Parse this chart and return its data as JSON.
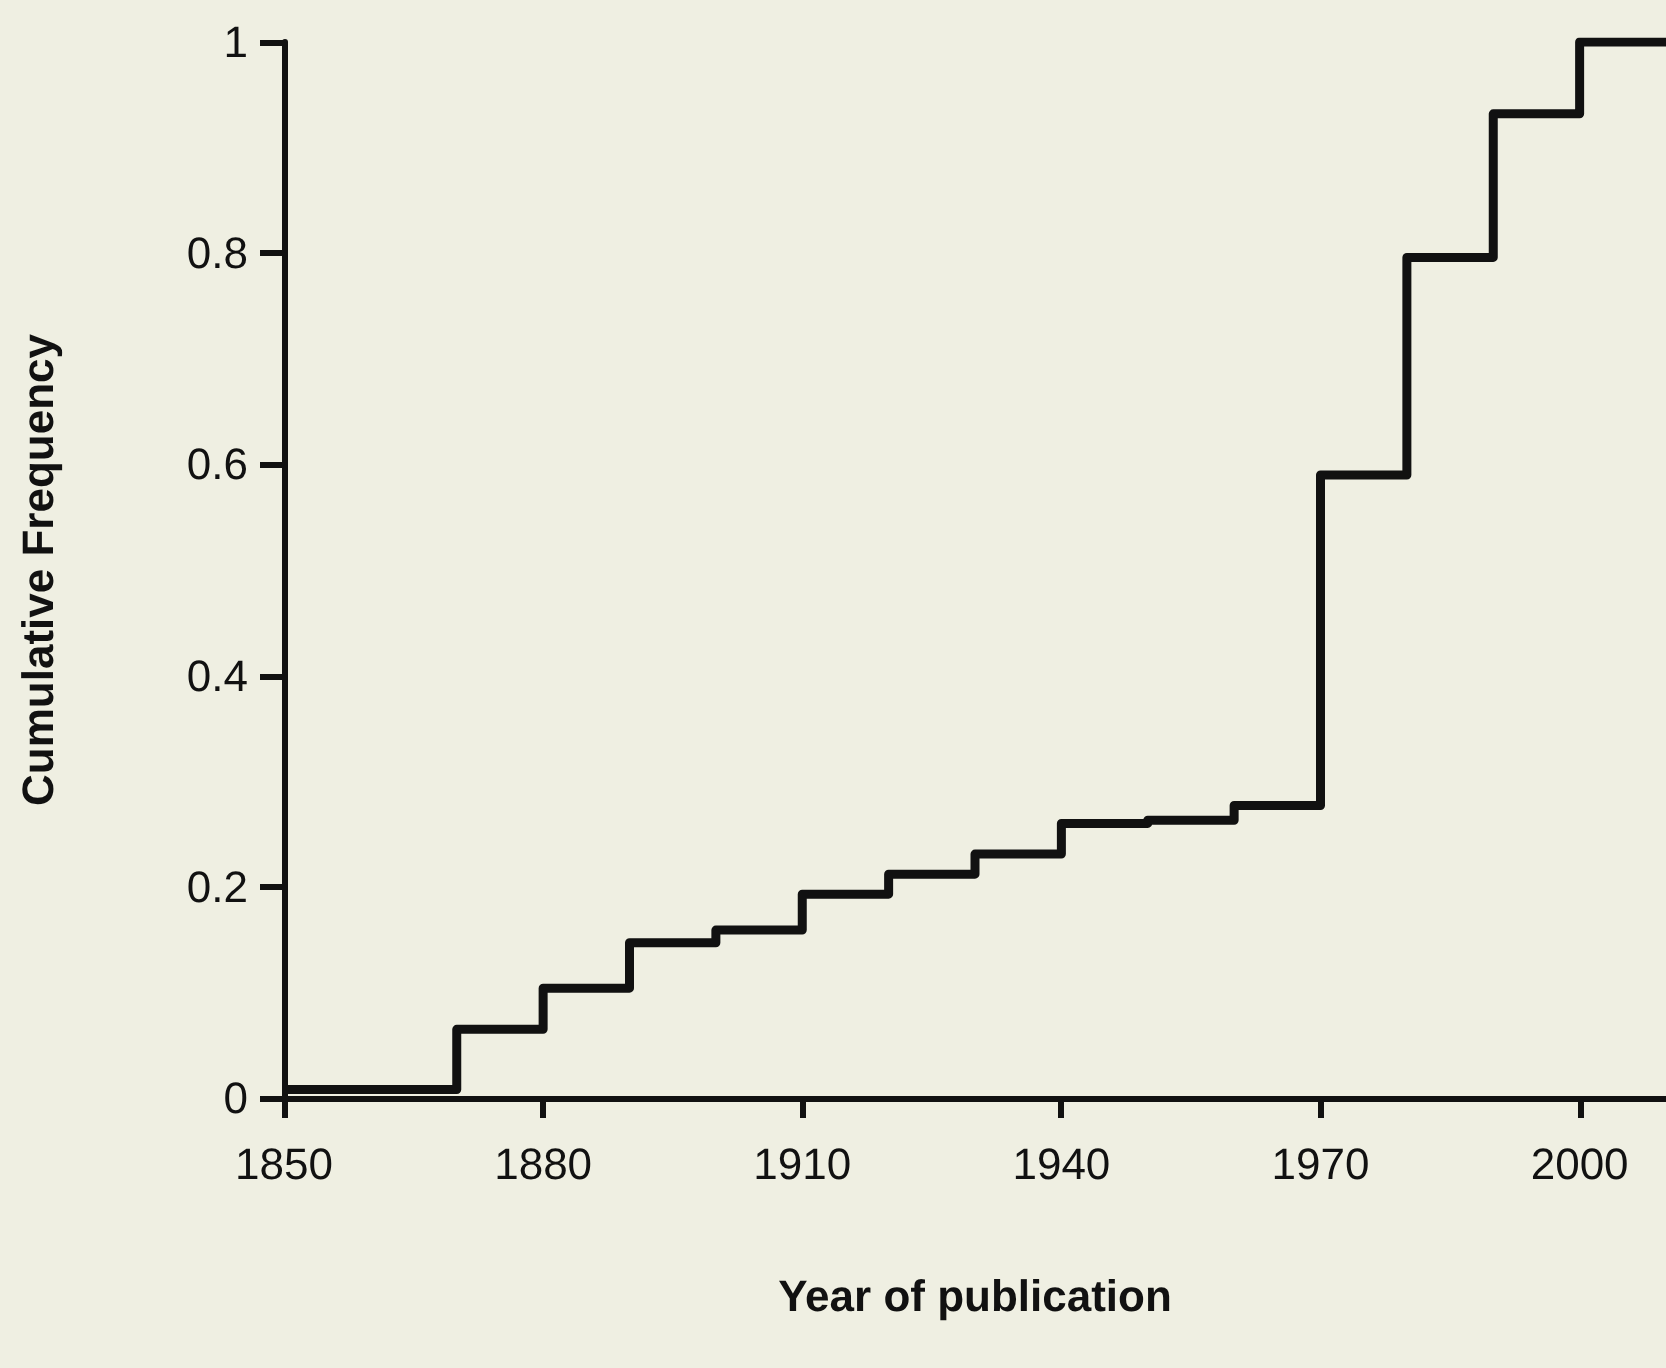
{
  "chart_data": {
    "type": "step",
    "xlabel": "Year of publication",
    "ylabel": "Cumulative Frequency",
    "x": [
      1850,
      1870,
      1880,
      1890,
      1900,
      1910,
      1920,
      1930,
      1940,
      1950,
      1960,
      1970,
      1980,
      1990,
      2000,
      2010
    ],
    "series": [
      {
        "color": "#111111",
        "values": [
          0.008,
          0.065,
          0.104,
          0.147,
          0.159,
          0.193,
          0.212,
          0.231,
          0.26,
          0.263,
          0.277,
          0.59,
          0.796,
          0.932,
          1.0,
          1.0
        ]
      }
    ],
    "xlim": [
      1850,
      2010
    ],
    "xticks": [
      1850,
      1880,
      1910,
      1940,
      1970,
      2000
    ],
    "ylim": [
      0,
      1
    ],
    "yticks": [
      0,
      0.2,
      0.4,
      0.6,
      0.8,
      1
    ],
    "marker": "none",
    "line_style": "solid"
  }
}
